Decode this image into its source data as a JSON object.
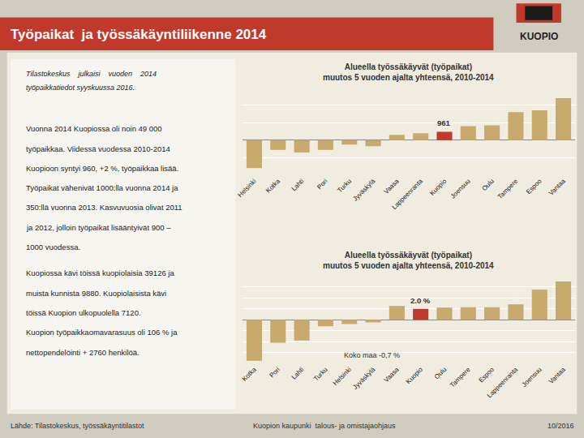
{
  "title": "Työpaikat  ja työssäkäyntiliikenne 2014",
  "annotations": [
    "Tilastokeskus    julkaisi    vuoden    2014\ntyöpaikkatiedot syyskuussa 2016.",
    "Vuonna 2014 Kuopiossa oli noin 49 000\ntyöpaikkaa. Viidessä vuodessa 2010-2014\nKuopioon syntyi 960, +2 %, työpaikkaa lisää.\nTyöpaikat vähenivät 1000:lla vuonna 2014 ja\n350:llä vuonna 2013. Kasvuvuosia olivat 2011\nja 2012, jolloin työpaikat lisääntyivät 900 –\n1000 vuodessa.",
    "Kuopiossa kävi töissä kuopiolaisia 39126 ja\nmuista kunnista 9880. Kuopiolaisista kävi\ntöissä Kuopion ulkopuolella 7120.\nKuopion työpaikkaomavarasuus oli 106 % ja\nnettopendelöinti + 2760 henkilöä.",
    "KUOPIO",
    "Lähde: Tilastokeskus, työssäkäyntitilastot",
    "Kuopion kaupunki  talous- ja omistajaohjaus",
    "10/2016"
  ],
  "chart_data": [
    {
      "type": "bar",
      "title": "Alueella työssäkäyvät (työpaikat)\nmuutos 5 vuoden ajalta yhteensä, 2010-2014",
      "categories": [
        "Helsinki",
        "Kotka",
        "Lahti",
        "Pori",
        "Turku",
        "Jyväskylä",
        "Vaasa",
        "Lappeenranta",
        "Kuopio",
        "Joensuu",
        "Oulu",
        "Tampere",
        "Espoo",
        "Vantaa"
      ],
      "values": [
        -3200,
        -1100,
        -1400,
        -1100,
        -500,
        -700,
        600,
        800,
        961,
        1600,
        1700,
        3200,
        3400,
        4800
      ],
      "colors": [
        "#c8a96e",
        "#c8a96e",
        "#c8a96e",
        "#c8a96e",
        "#c8a96e",
        "#c8a96e",
        "#c8a96e",
        "#c8a96e",
        "#c0392b",
        "#c8a96e",
        "#c8a96e",
        "#c8a96e",
        "#c8a96e",
        "#c8a96e"
      ],
      "ylim": [
        -4000,
        6000
      ],
      "yticks": [
        -4000,
        -2000,
        0,
        2000,
        4000,
        6000
      ],
      "grid": true,
      "tick_labels": "x",
      "annotations": [
        {
          "text": "961",
          "x": "Kuopio",
          "y": 961
        }
      ]
    },
    {
      "type": "bar",
      "title": "Alueella työssäkäyvät (työpaikat)\nmuutos 5 vuoden ajalta yhteensä, 2010-2014",
      "categories": [
        "Kotka",
        "Pori",
        "Lahti",
        "Turku",
        "Helsinki",
        "Jyväskylä",
        "Vaasa",
        "Kuopio",
        "Oulu",
        "Tampere",
        "Espoo",
        "Lappeenranta",
        "Joensuu",
        "Vantaa"
      ],
      "values": [
        -7.5,
        -4.2,
        -3.8,
        -1.2,
        -0.8,
        -0.5,
        2.5,
        2.0,
        2.2,
        2.3,
        2.3,
        2.8,
        5.5,
        7.0
      ],
      "colors": [
        "#c8a96e",
        "#c8a96e",
        "#c8a96e",
        "#c8a96e",
        "#c8a96e",
        "#c8a96e",
        "#c8a96e",
        "#c0392b",
        "#c8a96e",
        "#c8a96e",
        "#c8a96e",
        "#c8a96e",
        "#c8a96e",
        "#c8a96e"
      ],
      "ylim": [
        -8,
        8
      ],
      "yticks": [
        -8,
        -6,
        -4,
        -2,
        0,
        2,
        4,
        6,
        8
      ],
      "grid": true,
      "tick_labels": "x",
      "annotations": [
        {
          "text": "2.0 %",
          "x": "Kuopio",
          "y": 2.0
        },
        {
          "text": "Koko maa -0,7 %"
        }
      ]
    }
  ]
}
